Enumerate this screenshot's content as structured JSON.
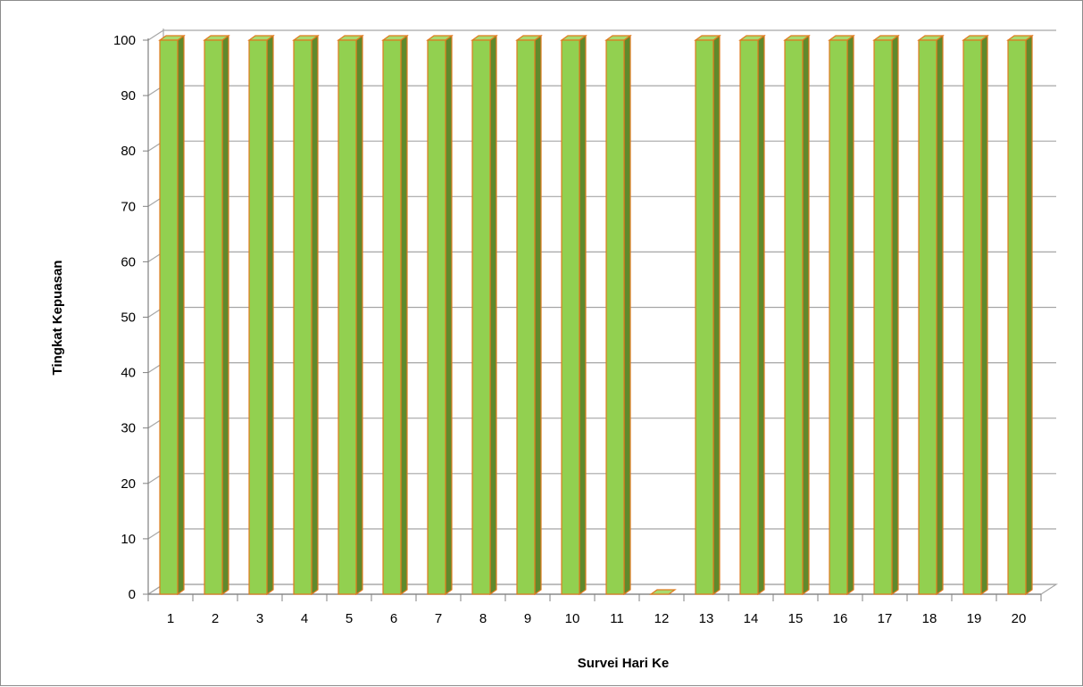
{
  "chart_data": {
    "type": "bar",
    "xlabel": "Survei Hari Ke",
    "ylabel": "Tingkat Kepuasan",
    "categories": [
      "1",
      "2",
      "3",
      "4",
      "5",
      "6",
      "7",
      "8",
      "9",
      "10",
      "11",
      "12",
      "13",
      "14",
      "15",
      "16",
      "17",
      "18",
      "19",
      "20"
    ],
    "series": [
      {
        "values": [
          100,
          100,
          100,
          100,
          100,
          100,
          100,
          100,
          100,
          100,
          100,
          0,
          100,
          100,
          100,
          100,
          100,
          100,
          100,
          100
        ]
      }
    ],
    "ylim": [
      0,
      100
    ],
    "yticks": [
      "0",
      "10",
      "20",
      "30",
      "40",
      "50",
      "60",
      "70",
      "80",
      "90",
      "100"
    ],
    "grid": true,
    "legend": "none",
    "style": "3d-column"
  },
  "colors": {
    "bar_front": "#92d050",
    "bar_side": "#5f8a2c",
    "bar_top": "#a9da6f",
    "bar_outline": "#e07a1f",
    "grid": "#a6a6a6"
  }
}
